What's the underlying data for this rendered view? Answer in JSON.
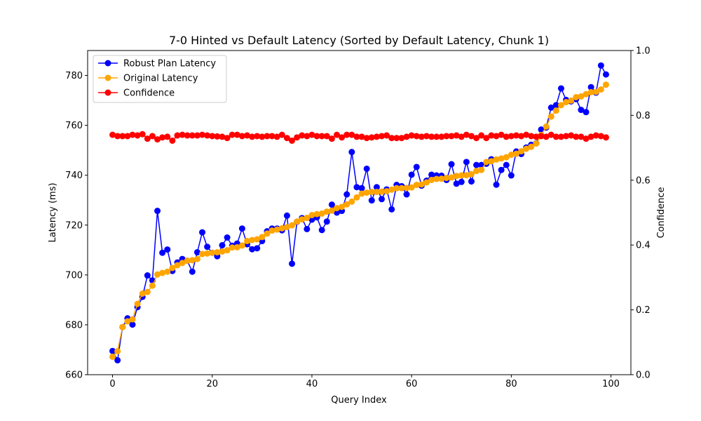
{
  "chart_data": {
    "type": "line",
    "title": "7-0 Hinted vs Default Latency (Sorted by Default Latency, Chunk 1)",
    "xlabel": "Query Index",
    "ylabel": "Latency (ms)",
    "y2label": "Confidence",
    "xlim": [
      -5,
      104
    ],
    "ylim": [
      660,
      790
    ],
    "y2lim": [
      0.0,
      1.0
    ],
    "xticks": [
      0,
      20,
      40,
      60,
      80,
      100
    ],
    "yticks": [
      660,
      680,
      700,
      720,
      740,
      760,
      780
    ],
    "y2ticks": [
      0.0,
      0.2,
      0.4,
      0.6,
      0.8,
      1.0
    ],
    "x": [
      0,
      1,
      2,
      3,
      4,
      5,
      6,
      7,
      8,
      9,
      10,
      11,
      12,
      13,
      14,
      15,
      16,
      17,
      18,
      19,
      20,
      21,
      22,
      23,
      24,
      25,
      26,
      27,
      28,
      29,
      30,
      31,
      32,
      33,
      34,
      35,
      36,
      37,
      38,
      39,
      40,
      41,
      42,
      43,
      44,
      45,
      46,
      47,
      48,
      49,
      50,
      51,
      52,
      53,
      54,
      55,
      56,
      57,
      58,
      59,
      60,
      61,
      62,
      63,
      64,
      65,
      66,
      67,
      68,
      69,
      70,
      71,
      72,
      73,
      74,
      75,
      76,
      77,
      78,
      79,
      80,
      81,
      82,
      83,
      84,
      85,
      86,
      87,
      88,
      89,
      90,
      91,
      92,
      93,
      94,
      95,
      96,
      97,
      98,
      99
    ],
    "legend_position": "upper-left",
    "grid": false,
    "series": [
      {
        "name": "Robust Plan Latency",
        "color": "#0000ff",
        "axis": "left",
        "values": [
          669.5,
          665.8,
          679.1,
          682.6,
          680.1,
          687.1,
          691.2,
          699.8,
          697.8,
          725.7,
          708.9,
          710.2,
          701.6,
          705,
          706.4,
          705.7,
          701.3,
          709.1,
          717.1,
          711.3,
          708.9,
          707.5,
          711.9,
          715,
          711.7,
          712.6,
          718.6,
          712.3,
          710.3,
          710.7,
          713.6,
          717.5,
          718.6,
          718.6,
          717.9,
          723.8,
          704.5,
          721.3,
          722.8,
          718.4,
          722.2,
          723.1,
          718,
          721.4,
          728.2,
          725,
          725.7,
          732.3,
          749.3,
          735.2,
          734.8,
          742.6,
          729.9,
          735.2,
          730.4,
          734.3,
          726.3,
          736.1,
          735.6,
          732.3,
          740.2,
          743.3,
          735.8,
          737.8,
          740.2,
          739.9,
          739.8,
          738.1,
          744.4,
          736.6,
          737.3,
          745.3,
          737.5,
          744.1,
          744.1,
          744.6,
          746.4,
          736.2,
          742.1,
          744.1,
          739.9,
          749.5,
          748.5,
          751.1,
          752.2,
          752.8,
          758.3,
          759.1,
          767.1,
          768.1,
          774.8,
          770.2,
          769.6,
          770.5,
          766.2,
          765.3,
          775.3,
          773.1,
          784,
          780.4
        ]
      },
      {
        "name": "Original Latency",
        "color": "#ffa500",
        "axis": "left",
        "values": [
          667.2,
          669.4,
          679.1,
          681.4,
          682.2,
          688.4,
          692.5,
          693.2,
          695.7,
          700.2,
          700.8,
          701.3,
          702.8,
          703.9,
          704.8,
          705.7,
          705.9,
          706.4,
          708.4,
          708.6,
          708.9,
          709.1,
          709.4,
          709.9,
          711,
          711.1,
          711.8,
          713.6,
          714,
          714.3,
          715.2,
          716.6,
          717.8,
          718.2,
          718.7,
          719.2,
          719.9,
          721.4,
          722.3,
          722.9,
          724,
          724.4,
          724.6,
          725.4,
          725.8,
          726.8,
          727.3,
          728.3,
          729.4,
          731.1,
          732.6,
          733,
          733.3,
          733.3,
          733.4,
          733.6,
          734.2,
          734.8,
          734.8,
          734.9,
          735.1,
          736.1,
          736.3,
          737.1,
          738.1,
          738.5,
          738.6,
          738.9,
          739.1,
          739.7,
          739.9,
          740,
          740.4,
          741.7,
          742.1,
          745.3,
          745.6,
          746.3,
          746.7,
          747.2,
          748.2,
          748.6,
          749.6,
          750.6,
          751.4,
          752.7,
          756.1,
          759.5,
          763.5,
          765.9,
          768.1,
          769.3,
          769.9,
          771.3,
          771.6,
          772.5,
          773.3,
          773.4,
          774.4,
          776.3
        ]
      },
      {
        "name": "Confidence",
        "color": "#ff0000",
        "axis": "right",
        "values": [
          0.74,
          0.736,
          0.736,
          0.736,
          0.74,
          0.738,
          0.742,
          0.728,
          0.736,
          0.726,
          0.732,
          0.734,
          0.722,
          0.738,
          0.74,
          0.738,
          0.738,
          0.738,
          0.74,
          0.738,
          0.736,
          0.735,
          0.734,
          0.73,
          0.74,
          0.74,
          0.736,
          0.738,
          0.734,
          0.736,
          0.734,
          0.736,
          0.736,
          0.734,
          0.74,
          0.73,
          0.722,
          0.732,
          0.738,
          0.736,
          0.74,
          0.736,
          0.736,
          0.736,
          0.728,
          0.74,
          0.732,
          0.74,
          0.74,
          0.734,
          0.734,
          0.73,
          0.732,
          0.734,
          0.736,
          0.738,
          0.73,
          0.73,
          0.73,
          0.734,
          0.738,
          0.736,
          0.734,
          0.736,
          0.734,
          0.734,
          0.734,
          0.736,
          0.736,
          0.738,
          0.734,
          0.74,
          0.736,
          0.73,
          0.738,
          0.73,
          0.738,
          0.736,
          0.74,
          0.734,
          0.736,
          0.738,
          0.736,
          0.74,
          0.736,
          0.734,
          0.736,
          0.734,
          0.74,
          0.734,
          0.734,
          0.736,
          0.738,
          0.734,
          0.734,
          0.728,
          0.734,
          0.738,
          0.736,
          0.732
        ]
      }
    ]
  }
}
